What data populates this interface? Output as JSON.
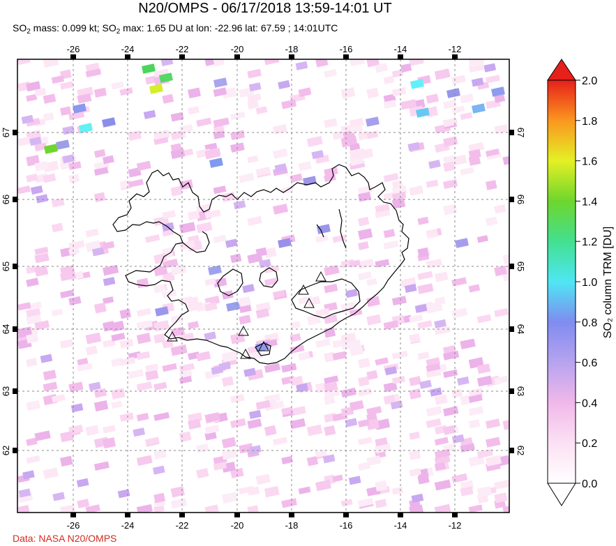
{
  "header": {
    "title": "N20/OMPS - 06/17/2018 13:59-14:01 UT",
    "subtitle": {
      "p1": "SO",
      "sub1": "2",
      "p2": " mass: 0.099 kt; SO",
      "sub2": "2",
      "p3": " max: 1.65 DU at lon: -22.96 lat: 67.59 ; 14:01UTC"
    }
  },
  "credit": "Data: NASA N20/OMPS",
  "colorbar": {
    "label": "SO₂ column TRM [DU]",
    "ticks": [
      "0.0",
      "0.2",
      "0.4",
      "0.6",
      "0.8",
      "1.0",
      "1.2",
      "1.4",
      "1.6",
      "1.8",
      "2.0"
    ],
    "min": 0,
    "max": 2.0
  },
  "map": {
    "lon_ticks": [
      "-26",
      "-24",
      "-22",
      "-20",
      "-18",
      "-16",
      "-14",
      "-12"
    ],
    "lat_ticks": [
      "67",
      "66",
      "65",
      "64",
      "63",
      "62"
    ],
    "volcano_marker": "triangle-icon",
    "colors": {
      "gridline": "#888888",
      "coast": "#000000"
    }
  }
}
